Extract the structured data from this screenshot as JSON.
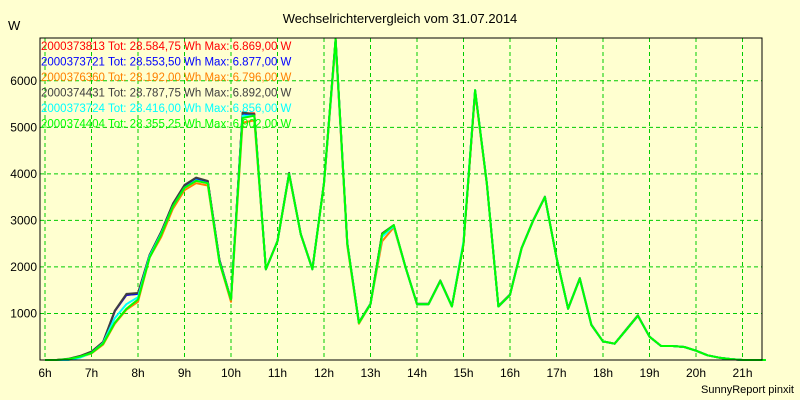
{
  "chart_data": {
    "type": "line",
    "title": "Wechselrichtervergleich vom 31.07.2014",
    "ylabel": "W",
    "xlabel": "",
    "credit": "SunnyReport pinxit",
    "x_start_hour": 6,
    "x_step_hours": 0.25,
    "xlim": [
      5.9,
      21.35
    ],
    "ylim": [
      0,
      6920
    ],
    "x_ticks": [
      "6h",
      "7h",
      "8h",
      "9h",
      "10h",
      "11h",
      "12h",
      "13h",
      "14h",
      "15h",
      "16h",
      "17h",
      "18h",
      "19h",
      "20h",
      "21h"
    ],
    "y_ticks": [
      1000,
      2000,
      3000,
      4000,
      5000,
      6000
    ],
    "grid": true,
    "legend_placement": "top-left",
    "series": [
      {
        "name": "2000373813 Tot: 28.584,75 Wh Max: 6.869,00 W",
        "color": "#ff0000",
        "values": [
          0,
          0,
          20,
          80,
          170,
          380,
          1050,
          1400,
          1420,
          2250,
          2750,
          3350,
          3750,
          3900,
          3830,
          2150,
          1300,
          5300,
          5300,
          1950,
          2550,
          4000,
          2700,
          1950,
          3800,
          6869,
          2500,
          800,
          1200,
          2700,
          2880,
          2000,
          1200,
          1200,
          1700,
          1150,
          2500,
          5780,
          3800,
          1150,
          1400,
          2400,
          3000,
          3500,
          2200,
          1100,
          1750,
          750,
          400,
          350,
          650,
          950,
          500,
          300,
          300,
          280,
          200,
          100,
          50,
          20,
          0,
          0,
          0
        ]
      },
      {
        "name": "2000373721 Tot: 28.553,50 Wh Max: 6.877,00 W",
        "color": "#0000ff",
        "values": [
          0,
          0,
          20,
          80,
          170,
          380,
          1050,
          1400,
          1420,
          2250,
          2750,
          3350,
          3750,
          3900,
          3830,
          2150,
          1300,
          5300,
          5250,
          1950,
          2550,
          4000,
          2700,
          1950,
          3800,
          6877,
          2500,
          800,
          1200,
          2700,
          2880,
          2000,
          1200,
          1200,
          1700,
          1150,
          2500,
          5780,
          3800,
          1150,
          1400,
          2400,
          3000,
          3500,
          2200,
          1100,
          1750,
          750,
          400,
          350,
          650,
          950,
          500,
          300,
          300,
          280,
          200,
          100,
          50,
          20,
          0,
          0,
          0
        ]
      },
      {
        "name": "2000376360 Tot: 28.192,00 Wh Max: 6.796,00 W",
        "color": "#ff8000",
        "values": [
          0,
          0,
          15,
          60,
          140,
          330,
          780,
          1080,
          1250,
          2200,
          2650,
          3250,
          3650,
          3800,
          3750,
          2100,
          1250,
          5100,
          5150,
          1950,
          2550,
          3980,
          2700,
          1950,
          3780,
          6796,
          2450,
          780,
          1200,
          2550,
          2850,
          2000,
          1200,
          1200,
          1700,
          1150,
          2480,
          5750,
          3780,
          1150,
          1400,
          2400,
          3000,
          3500,
          2200,
          1100,
          1750,
          750,
          400,
          350,
          650,
          950,
          500,
          300,
          300,
          280,
          200,
          100,
          50,
          20,
          0,
          0,
          0
        ]
      },
      {
        "name": "2000374431 Tot: 28.787,75 Wh Max: 6.892,00 W",
        "color": "#404040",
        "values": [
          0,
          0,
          25,
          85,
          180,
          390,
          1060,
          1420,
          1440,
          2260,
          2760,
          3360,
          3760,
          3920,
          3850,
          2160,
          1300,
          5320,
          5280,
          1950,
          2560,
          4020,
          2710,
          1960,
          3820,
          6892,
          2520,
          810,
          1210,
          2720,
          2900,
          2010,
          1210,
          1210,
          1710,
          1160,
          2510,
          5800,
          3810,
          1160,
          1410,
          2410,
          3010,
          3510,
          2210,
          1110,
          1760,
          760,
          400,
          350,
          660,
          960,
          500,
          300,
          300,
          280,
          200,
          100,
          50,
          20,
          0,
          0,
          0
        ]
      },
      {
        "name": "2000373724 Tot: 28.416,00 Wh Max: 6.856,00 W",
        "color": "#00ffff",
        "values": [
          0,
          0,
          0,
          50,
          150,
          360,
          900,
          1200,
          1350,
          2230,
          2720,
          3300,
          3700,
          3860,
          3800,
          2120,
          1300,
          5250,
          5250,
          1950,
          2550,
          4000,
          2700,
          1950,
          3800,
          6856,
          2500,
          800,
          1200,
          2650,
          2880,
          2000,
          1200,
          1200,
          1700,
          1150,
          2550,
          5800,
          3800,
          1150,
          1400,
          2400,
          3000,
          3500,
          2200,
          1100,
          1750,
          750,
          400,
          350,
          650,
          950,
          500,
          300,
          300,
          280,
          200,
          100,
          50,
          20,
          0,
          0,
          0
        ]
      },
      {
        "name": "2000374404 Tot: 28.355,25 Wh Max: 6.902,00 W",
        "color": "#00ff00",
        "values": [
          0,
          0,
          20,
          70,
          150,
          350,
          800,
          1100,
          1300,
          2200,
          2700,
          3300,
          3700,
          3850,
          3800,
          2100,
          1300,
          5200,
          5250,
          1950,
          2550,
          4000,
          2700,
          1950,
          3800,
          6902,
          2500,
          800,
          1200,
          2700,
          2900,
          2000,
          1200,
          1200,
          1700,
          1150,
          2500,
          5800,
          3800,
          1150,
          1400,
          2400,
          3000,
          3500,
          2200,
          1100,
          1750,
          750,
          400,
          350,
          650,
          950,
          500,
          300,
          300,
          280,
          200,
          100,
          50,
          20,
          0,
          0,
          0
        ]
      }
    ]
  }
}
